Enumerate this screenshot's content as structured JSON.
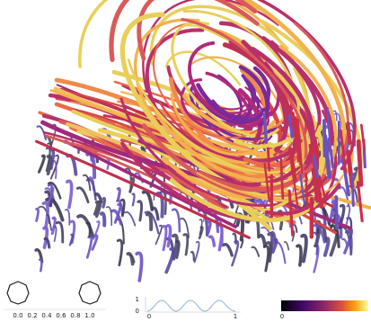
{
  "widgets": {
    "opacity_scale_labels": [
      "0.0",
      "0.2",
      "0.4",
      "0.6",
      "0.8",
      "1.0"
    ],
    "curve_y_labels": [
      "1",
      "0"
    ],
    "curve_x_labels": [
      "0",
      "1"
    ],
    "colorbar_label": "0"
  }
}
